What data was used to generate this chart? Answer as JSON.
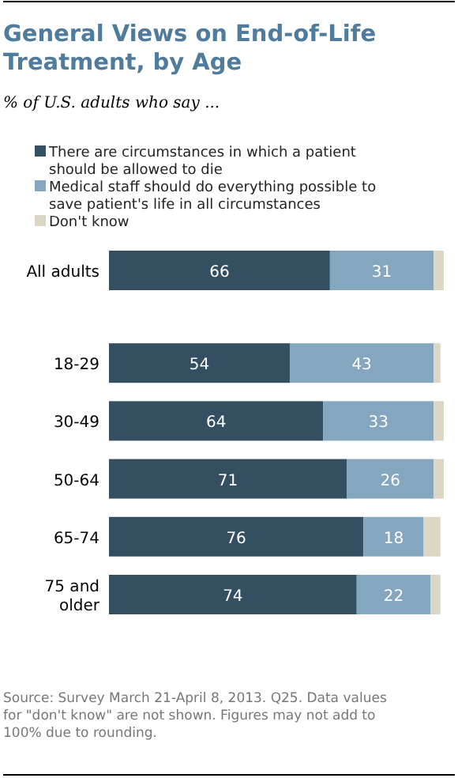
{
  "chart_data": {
    "type": "bar",
    "orientation": "horizontal",
    "stacked": true,
    "title": "General Views on End-of-Life Treatment, by Age",
    "subtitle": "% of U.S. adults who say ...",
    "categories": [
      "All adults",
      "18-29",
      "30-49",
      "50-64",
      "65-74",
      "75 and older"
    ],
    "series": [
      {
        "name": "There are circumstances in which a patient should be allowed to die",
        "color": "#344f62",
        "values": [
          66,
          54,
          64,
          71,
          76,
          74
        ],
        "value_labels": [
          "66",
          "54",
          "64",
          "71",
          "76",
          "74"
        ]
      },
      {
        "name": "Medical staff should do everything possible to save patient's life in all circumstances",
        "color": "#84a6be",
        "values": [
          31,
          43,
          33,
          26,
          18,
          22
        ],
        "value_labels": [
          "31",
          "43",
          "33",
          "26",
          "18",
          "22"
        ]
      },
      {
        "name": "Don't know",
        "color": "#dcd6c5",
        "values": [
          3,
          2,
          3,
          3,
          5,
          3
        ],
        "value_labels": [
          null,
          null,
          null,
          null,
          null,
          null
        ]
      }
    ],
    "xlim": [
      0,
      100
    ],
    "tick_labels": false,
    "legend": "top",
    "annotations": [
      "Source: Survey March 21-April 8, 2013. Q25. Data values for \"don't know\" are not shown. Figures may not add to 100% due to rounding."
    ]
  }
}
